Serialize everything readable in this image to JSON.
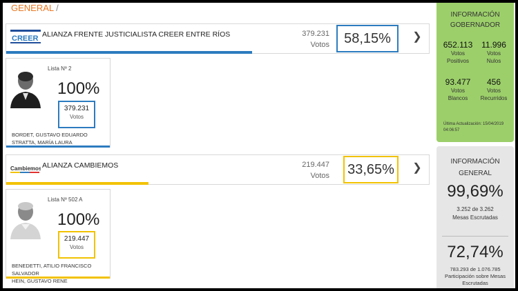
{
  "breadcrumb": {
    "label": "GENERAL",
    "separator": "/"
  },
  "parties": [
    {
      "name": "ALIANZA FRENTE JUSTICIALISTA CREER ENTRE RÍOS",
      "votes": "379.231",
      "votes_label": "Votos",
      "percent": "58,15%",
      "color": "#2c7bbf",
      "logo": "creer-logo",
      "logo_text": "CREER",
      "candidate": {
        "lista": "Lista Nº 2",
        "percent": "100%",
        "votes": "379.231",
        "votes_label": "Votos",
        "names": [
          "BORDET, GUSTAVO EDUARDO",
          "STRATTA, MARÍA LAURA"
        ]
      }
    },
    {
      "name": "ALIANZA CAMBIEMOS",
      "votes": "219.447",
      "votes_label": "Votos",
      "percent": "33,65%",
      "color": "#f2c200",
      "logo": "cambiemos-logo",
      "logo_text": "Cambiemos",
      "candidate": {
        "lista": "Lista Nº 502 A",
        "percent": "100%",
        "votes": "219.447",
        "votes_label": "Votos",
        "names": [
          "BENEDETTI, ATILIO FRANCISCO SALVADOR",
          "HEIN, GUSTAVO RENE"
        ]
      }
    }
  ],
  "info_gobernador": {
    "title_line1": "INFORMACIÓN",
    "title_line2": "GOBERNADOR",
    "positivos": "652.113",
    "positivos_label1": "Votos",
    "positivos_label2": "Positivos",
    "nulos": "11.996",
    "nulos_label1": "Votos",
    "nulos_label2": "Nulos",
    "blancos": "93.477",
    "blancos_label1": "Votos",
    "blancos_label2": "Blancos",
    "recurridos": "456",
    "recurridos_label1": "Votos",
    "recurridos_label2": "Recurridos",
    "update_line1": "Última Actualización: 15/04/2019",
    "update_line2": "04:06:57"
  },
  "info_general": {
    "title_line1": "INFORMACIÓN",
    "title_line2": "GENERAL",
    "mesas_pct": "99,69%",
    "mesas_count": "3.252 de 3.262",
    "mesas_label": "Mesas Escrutadas",
    "part_pct": "72,74%",
    "part_count": "783.293 de 1.076.785",
    "part_label1": "Participación sobre Mesas",
    "part_label2": "Escrutadas"
  }
}
